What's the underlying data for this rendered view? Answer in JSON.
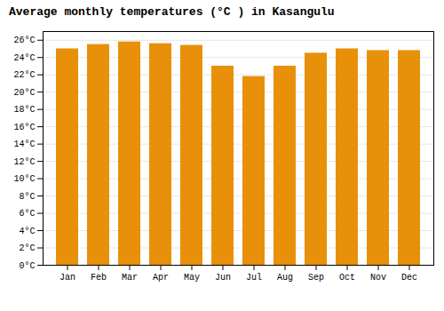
{
  "chart_data": {
    "type": "bar",
    "title": "Average monthly temperatures (°C ) in Kasangulu",
    "categories": [
      "Jan",
      "Feb",
      "Mar",
      "Apr",
      "May",
      "Jun",
      "Jul",
      "Aug",
      "Sep",
      "Oct",
      "Nov",
      "Dec"
    ],
    "values": [
      25.0,
      25.5,
      25.8,
      25.6,
      25.4,
      23.0,
      21.8,
      23.0,
      24.5,
      25.0,
      24.8,
      24.8
    ],
    "color": "#E8900A",
    "ylim": [
      0,
      27
    ],
    "yticks": [
      {
        "value": 0,
        "label": "0°C"
      },
      {
        "value": 2,
        "label": "2°C"
      },
      {
        "value": 4,
        "label": "4°C"
      },
      {
        "value": 6,
        "label": "6°C"
      },
      {
        "value": 8,
        "label": "8°C"
      },
      {
        "value": 10,
        "label": "10°C"
      },
      {
        "value": 12,
        "label": "12°C"
      },
      {
        "value": 14,
        "label": "14°C"
      },
      {
        "value": 16,
        "label": "16°C"
      },
      {
        "value": 18,
        "label": "18°C"
      },
      {
        "value": 20,
        "label": "20°C"
      },
      {
        "value": 22,
        "label": "22°C"
      },
      {
        "value": 24,
        "label": "24°C"
      },
      {
        "value": 26,
        "label": "26°C"
      }
    ],
    "grid": true
  }
}
